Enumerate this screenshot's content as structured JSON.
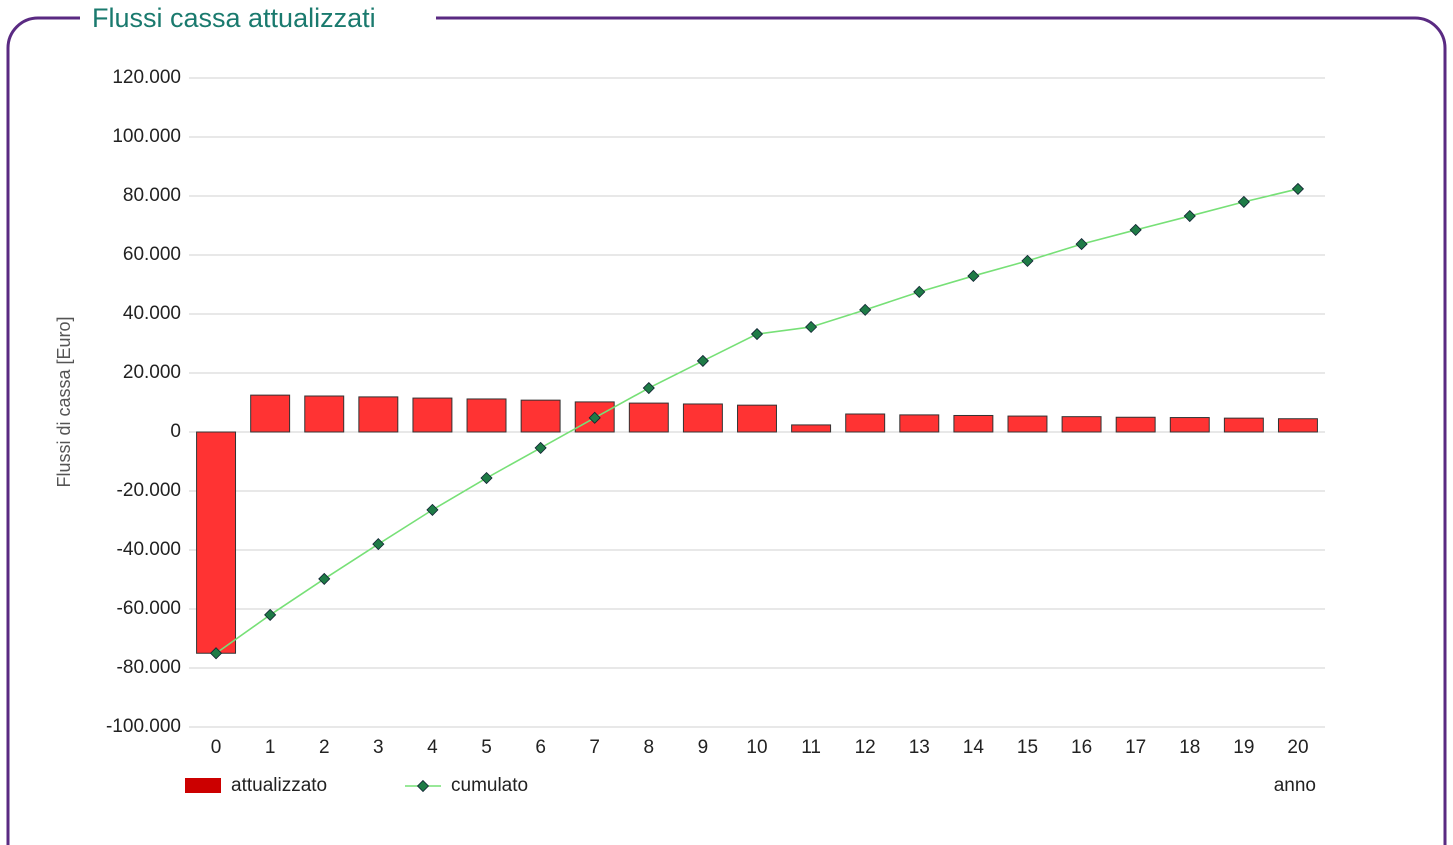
{
  "chart_data": {
    "type": "bar_line",
    "title": "Flussi cassa attualizzati",
    "y_label": "Flussi di cassa [Euro]",
    "x_label": "anno",
    "categories": [
      "0",
      "1",
      "2",
      "3",
      "4",
      "5",
      "6",
      "7",
      "8",
      "9",
      "10",
      "11",
      "12",
      "13",
      "14",
      "15",
      "16",
      "17",
      "18",
      "19",
      "20"
    ],
    "series": [
      {
        "name": "attualizzato",
        "type": "bar",
        "color": "#ff3333",
        "values": [
          -75000,
          12500,
          12200,
          11900,
          11500,
          11200,
          10800,
          10200,
          9800,
          9500,
          9100,
          2400,
          6100,
          5800,
          5600,
          5400,
          5200,
          5000,
          4900,
          4700,
          4500
        ]
      },
      {
        "name": "cumulato",
        "type": "line",
        "color": "#77e077",
        "marker_color": "#1e7b46",
        "values": [
          -75000,
          -62000,
          -49800,
          -38000,
          -26400,
          -15600,
          -5400,
          4800,
          14900,
          24100,
          33200,
          35600,
          41400,
          47500,
          52900,
          58000,
          63700,
          68500,
          73200,
          78000,
          82400
        ]
      }
    ],
    "ylim": [
      -100000,
      120000
    ],
    "yticks": [
      {
        "value": -100000,
        "label": "-100.000"
      },
      {
        "value": -80000,
        "label": "-80.000"
      },
      {
        "value": -60000,
        "label": "-60.000"
      },
      {
        "value": -40000,
        "label": "-40.000"
      },
      {
        "value": -20000,
        "label": "-20.000"
      },
      0,
      {
        "value": 20000,
        "label": "20.000"
      },
      {
        "value": 40000,
        "label": "40.000"
      },
      {
        "value": 60000,
        "label": "60.000"
      },
      {
        "value": 80000,
        "label": "80.000"
      },
      {
        "value": 100000,
        "label": "100.000"
      },
      {
        "value": 120000,
        "label": "120.000"
      }
    ],
    "grid": true
  }
}
